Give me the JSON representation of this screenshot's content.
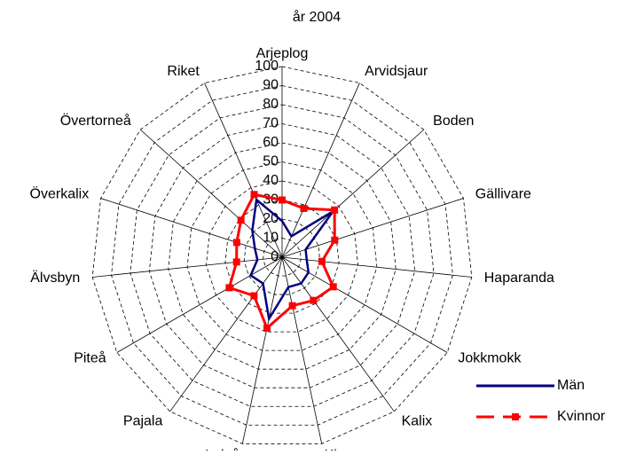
{
  "chart_data": {
    "type": "radar",
    "title": "år 2004",
    "categories": [
      "Arjeplog",
      "Arvidsjaur",
      "Boden",
      "Gällivare",
      "Haparanda",
      "Jokkmokk",
      "Kalix",
      "Kiruna",
      "Luleå",
      "Pajala",
      "Piteå",
      "Älvsbyn",
      "Överkalix",
      "Övertorneå",
      "Riket"
    ],
    "series": [
      {
        "name": "Män",
        "color": "#000080",
        "values": [
          19,
          12,
          36,
          13,
          13,
          16,
          17,
          16,
          33,
          17,
          19,
          13,
          15,
          21,
          33
        ]
      },
      {
        "name": "Kvinnor",
        "color": "#ff0000",
        "values": [
          30,
          28,
          37,
          29,
          21,
          31,
          28,
          26,
          38,
          25,
          32,
          24,
          25,
          29,
          36
        ]
      }
    ],
    "ylim": [
      0,
      100
    ],
    "yticks": [
      0,
      10,
      20,
      30,
      40,
      50,
      60,
      70,
      80,
      90,
      100
    ],
    "grid": true
  }
}
